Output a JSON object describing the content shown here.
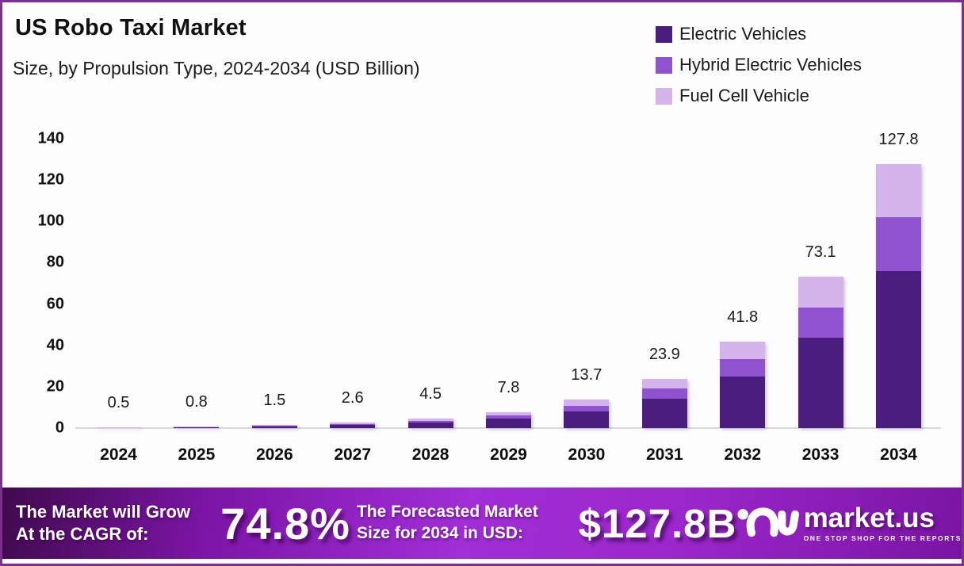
{
  "header": {
    "title": "US Robo Taxi Market",
    "subtitle": "Size, by Propulsion Type, 2024-2034 (USD Billion)"
  },
  "legend": [
    {
      "label": "Electric Vehicles",
      "color": "#4a1d7e"
    },
    {
      "label": "Hybrid Electric Vehicles",
      "color": "#8f53d0"
    },
    {
      "label": "Fuel Cell Vehicle",
      "color": "#d5b4ec"
    }
  ],
  "chart_data": {
    "type": "bar",
    "stacked": true,
    "title": "US Robo Taxi Market Size, by Propulsion Type, 2024-2034 (USD Billion)",
    "categories": [
      "2024",
      "2025",
      "2026",
      "2027",
      "2028",
      "2029",
      "2030",
      "2031",
      "2032",
      "2033",
      "2034"
    ],
    "series": [
      {
        "name": "Electric Vehicles",
        "color": "#4a1d7e",
        "values": [
          0.3,
          0.5,
          0.9,
          1.6,
          2.7,
          4.6,
          8.2,
          14.2,
          25.0,
          43.6,
          76.0
        ]
      },
      {
        "name": "Hybrid Electric Vehicles",
        "color": "#8f53d0",
        "values": [
          0.1,
          0.15,
          0.3,
          0.5,
          0.9,
          1.6,
          2.7,
          4.8,
          8.4,
          14.7,
          25.9
        ]
      },
      {
        "name": "Fuel Cell Vehicle",
        "color": "#d5b4ec",
        "values": [
          0.1,
          0.15,
          0.3,
          0.5,
          0.9,
          1.6,
          2.8,
          4.9,
          8.4,
          14.8,
          25.9
        ]
      }
    ],
    "totals": [
      0.5,
      0.8,
      1.5,
      2.6,
      4.5,
      7.8,
      13.7,
      23.9,
      41.8,
      73.1,
      127.8
    ],
    "total_labels": [
      "0.5",
      "0.8",
      "1.5",
      "2.6",
      "4.5",
      "7.8",
      "13.7",
      "23.9",
      "41.8",
      "73.1",
      "127.8"
    ],
    "yticks": [
      0,
      20,
      40,
      60,
      80,
      100,
      120,
      140
    ],
    "ylim": [
      0,
      140
    ],
    "xlabel": "",
    "ylabel": "",
    "grid": false,
    "legend_position": "top-right"
  },
  "footer": {
    "cagr_label_line1": "The Market will Grow",
    "cagr_label_line2": "At the CAGR of:",
    "cagr_value": "74.8%",
    "forecast_label_line1": "The Forecasted Market",
    "forecast_label_line2": "Size for 2034 in USD:",
    "forecast_value": "$127.8B",
    "brand": {
      "name": "market.us",
      "tagline": "ONE STOP SHOP FOR THE REPORTS",
      "logo": "market-us-swirl-icon"
    }
  },
  "colors": {
    "border": "#7b2f8e",
    "background": "#fdfdfe",
    "baseline": "#d9d9d9",
    "text": "#111111",
    "footer_gradient_start": "#400a4d",
    "footer_gradient_mid": "#a12ed6",
    "footer_gradient_end": "#7a14a4",
    "footer_text": "#ffffff"
  }
}
